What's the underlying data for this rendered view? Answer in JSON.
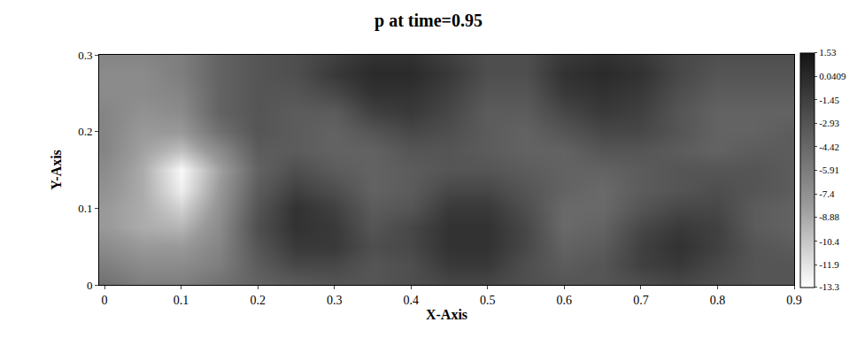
{
  "chart_data": {
    "type": "heatmap",
    "title": "p at time=0.95",
    "x_label": "X-Axis",
    "y_label": "Y-Axis",
    "x": [
      0,
      0.05,
      0.1,
      0.15,
      0.2,
      0.25,
      0.3,
      0.35,
      0.4,
      0.45,
      0.5,
      0.55,
      0.6,
      0.65,
      0.7,
      0.75,
      0.8,
      0.85,
      0.9
    ],
    "y": [
      0,
      0.025,
      0.05,
      0.075,
      0.1,
      0.125,
      0.15,
      0.175,
      0.2,
      0.225,
      0.25,
      0.275,
      0.3
    ],
    "z": [
      [
        -5,
        -6,
        -6,
        -5,
        -4,
        -3.5,
        -3,
        -3,
        -2.5,
        -2,
        -2,
        -2.5,
        -3,
        -3,
        -2.5,
        -2,
        -2.5,
        -3,
        -3
      ],
      [
        -6,
        -7,
        -7,
        -6,
        -3.5,
        -2,
        -2,
        -3,
        -2.5,
        -1,
        -1,
        -2.5,
        -3.5,
        -3,
        -1.5,
        -1,
        -2,
        -3,
        -3
      ],
      [
        -7,
        -8,
        -8,
        -6.5,
        -3,
        -1,
        -1,
        -2.5,
        -2,
        -0.5,
        -0.5,
        -2,
        -4,
        -3.5,
        -1.5,
        -0.5,
        -1.5,
        -3,
        -3.5
      ],
      [
        -8,
        -9,
        -9.5,
        -7,
        -2.5,
        -0.5,
        -1,
        -3,
        -2,
        -0.5,
        -0.5,
        -2,
        -4.5,
        -4,
        -2,
        -1,
        -1.5,
        -3.5,
        -4
      ],
      [
        -8,
        -9,
        -11,
        -7.5,
        -3,
        -0.5,
        -1.5,
        -3.5,
        -3,
        -1,
        -1,
        -2.5,
        -4.5,
        -4.5,
        -3,
        -2,
        -2,
        -3.5,
        -4
      ],
      [
        -7.5,
        -9,
        -12.5,
        -8,
        -3.5,
        -1.5,
        -2.5,
        -4,
        -3.5,
        -2,
        -2,
        -3,
        -4,
        -4.5,
        -3.5,
        -3,
        -2.5,
        -3,
        -3.5
      ],
      [
        -7,
        -9,
        -13,
        -8.5,
        -4,
        -2.5,
        -3.5,
        -4,
        -3.5,
        -3,
        -3,
        -3.5,
        -4,
        -4,
        -3.5,
        -3,
        -3,
        -3,
        -3.5
      ],
      [
        -6.5,
        -8.5,
        -10,
        -7,
        -3.5,
        -3.5,
        -4,
        -4,
        -3,
        -3,
        -3.5,
        -4,
        -4,
        -3,
        -3,
        -3.5,
        -4,
        -3.5,
        -3.5
      ],
      [
        -6.5,
        -8,
        -8,
        -5,
        -3,
        -3.5,
        -4,
        -3,
        -2,
        -2.5,
        -3.5,
        -4,
        -3,
        -2,
        -2,
        -3,
        -4,
        -4,
        -3.5
      ],
      [
        -6.5,
        -7.5,
        -7,
        -4,
        -3,
        -3.5,
        -3.5,
        -1.5,
        -1,
        -2,
        -3.5,
        -3.5,
        -2,
        -1,
        -1.5,
        -3,
        -4,
        -4,
        -4
      ],
      [
        -7,
        -7,
        -6.5,
        -4,
        -3,
        -3,
        -2,
        -0.5,
        -0.5,
        -1.5,
        -3,
        -3,
        -1,
        -0.5,
        -1,
        -2.5,
        -3.5,
        -3.5,
        -3.5
      ],
      [
        -7,
        -7,
        -6,
        -4,
        -3,
        -2.5,
        -1,
        0,
        0,
        -1,
        -2.5,
        -2.5,
        -0.5,
        0,
        -0.5,
        -2,
        -3,
        -3,
        -3
      ],
      [
        -6.5,
        -6.5,
        -6,
        -4,
        -3,
        -2.5,
        -1.5,
        -0.5,
        -0.5,
        -1.5,
        -2.5,
        -2.5,
        -1,
        -0.5,
        -1,
        -2,
        -2.5,
        -2.5,
        -2.5
      ]
    ],
    "xlim": [
      -0.007,
      0.9
    ],
    "ylim": [
      0,
      0.3
    ],
    "xticks": [
      0,
      0.1,
      0.2,
      0.3,
      0.4,
      0.5,
      0.6,
      0.7,
      0.8,
      0.9
    ],
    "yticks": [
      0,
      0.1,
      0.2,
      0.3
    ],
    "colorbar_range": [
      -13.3,
      1.53
    ],
    "colorbar_ticks": [
      1.53,
      0.0409,
      -1.45,
      -2.93,
      -4.42,
      -5.91,
      -7.4,
      -8.88,
      -10.4,
      -11.9,
      -13.3
    ]
  }
}
